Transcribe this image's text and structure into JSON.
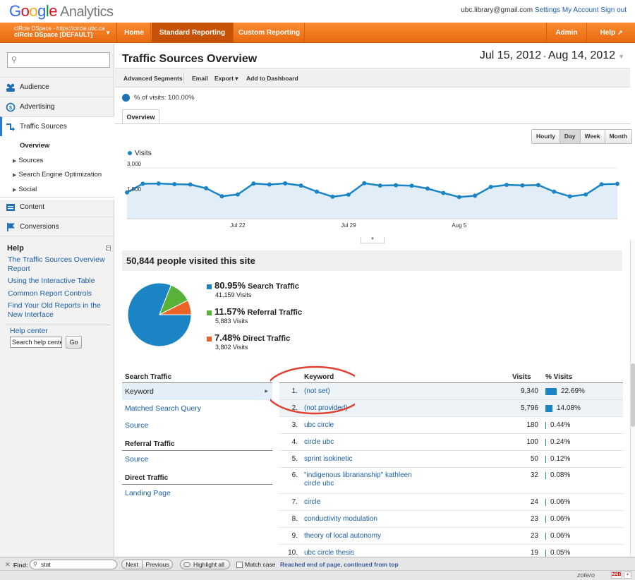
{
  "header": {
    "logo_google": [
      "G",
      "o",
      "o",
      "g",
      "l",
      "e"
    ],
    "logo_analytics": "Analytics",
    "email": "ubc.library@gmail.com",
    "settings": "Settings",
    "my_account": "My Account",
    "sign_out": "Sign out"
  },
  "account": {
    "line1": "cIRcle DSpace - https://circle.ubc.ca",
    "line2": "cIRcle DSpace [DEFAULT]"
  },
  "nav": {
    "home": "Home",
    "standard": "Standard Reporting",
    "custom": "Custom Reporting",
    "admin": "Admin",
    "help": "Help"
  },
  "sidebar": {
    "items": [
      {
        "label": "Audience",
        "icon": "audience-icon"
      },
      {
        "label": "Advertising",
        "icon": "advertising-icon"
      },
      {
        "label": "Traffic Sources",
        "icon": "traffic-sources-icon"
      },
      {
        "label": "Content",
        "icon": "content-icon"
      },
      {
        "label": "Conversions",
        "icon": "conversions-icon"
      }
    ],
    "subitems": [
      "Overview",
      "Sources",
      "Search Engine Optimization",
      "Social"
    ],
    "help_title": "Help",
    "help_links": [
      "The Traffic Sources Overview Report",
      "Using the Interactive Table",
      "Common Report Controls",
      "Find Your Old Reports in the New Interface"
    ],
    "help_center": "Help center",
    "help_search_value": "Search help center",
    "help_go": "Go"
  },
  "report": {
    "title": "Traffic Sources Overview",
    "date_start": "Jul 15, 2012",
    "date_sep": " - ",
    "date_end": "Aug 14, 2012",
    "toolbar": [
      "Advanced Segments",
      "Email",
      "Export ▾",
      "Add to Dashboard"
    ],
    "pct_visits": "% of visits: 100.00%",
    "tab": "Overview",
    "granularity": [
      "Hourly",
      "Day",
      "Week",
      "Month"
    ],
    "granularity_selected": "Day",
    "legend": "Visits"
  },
  "chart_data": {
    "type": "area",
    "series": [
      {
        "name": "Visits",
        "values": [
          1550,
          2070,
          2080,
          2040,
          2020,
          1800,
          1330,
          1430,
          2080,
          2020,
          2090,
          1960,
          1600,
          1300,
          1420,
          2100,
          1960,
          1980,
          1950,
          1780,
          1520,
          1280,
          1360,
          1880,
          2000,
          1970,
          1990,
          1600,
          1320,
          1430,
          2030,
          2060
        ]
      }
    ],
    "ylim": [
      0,
      3000
    ],
    "yticks": [
      "3,000",
      "1,500"
    ],
    "xticks": [
      {
        "label": "Jul 22",
        "index": 7
      },
      {
        "label": "Jul 29",
        "index": 14
      },
      {
        "label": "Aug 5",
        "index": 21
      }
    ],
    "color": "#1b84c4",
    "fill": "#e1eef8"
  },
  "summary": {
    "visitors": "50,844 people visited this site"
  },
  "pie": {
    "slices": [
      {
        "pct": "80.95%",
        "label": "Search Traffic",
        "visits": "41,159 Visits",
        "value": 80.95,
        "color": "#1b84c4"
      },
      {
        "pct": "11.57%",
        "label": "Referral Traffic",
        "visits": "5,883 Visits",
        "value": 11.57,
        "color": "#58b23a"
      },
      {
        "pct": "7.48%",
        "label": "Direct Traffic",
        "visits": "3,802 Visits",
        "value": 7.48,
        "color": "#ed6226"
      }
    ]
  },
  "dimensions": {
    "search_head": "Search Traffic",
    "search_items": [
      "Keyword",
      "Matched Search Query",
      "Source"
    ],
    "referral_head": "Referral Traffic",
    "referral_items": [
      "Source"
    ],
    "direct_head": "Direct Traffic",
    "direct_items": [
      "Landing Page"
    ]
  },
  "keywords": {
    "headers": {
      "keyword": "Keyword",
      "visits": "Visits",
      "pct": "% Visits"
    },
    "rows": [
      {
        "n": "1.",
        "kw": "(not set)",
        "visits": "9,340",
        "pct": "22.69%",
        "frac": 22.69
      },
      {
        "n": "2.",
        "kw": "(not provided)",
        "visits": "5,796",
        "pct": "14.08%",
        "frac": 14.08
      },
      {
        "n": "3.",
        "kw": "ubc circle",
        "visits": "180",
        "pct": "0.44%",
        "frac": 0.44
      },
      {
        "n": "4.",
        "kw": "circle ubc",
        "visits": "100",
        "pct": "0.24%",
        "frac": 0.24
      },
      {
        "n": "5.",
        "kw": "sprint isokinetic",
        "visits": "50",
        "pct": "0.12%",
        "frac": 0.12
      },
      {
        "n": "6.",
        "kw": "\"indigenous librarianship\" kathleen circle ubc",
        "visits": "32",
        "pct": "0.08%",
        "frac": 0.08
      },
      {
        "n": "7.",
        "kw": "circle",
        "visits": "24",
        "pct": "0.06%",
        "frac": 0.06
      },
      {
        "n": "8.",
        "kw": "conductivity modulation",
        "visits": "23",
        "pct": "0.06%",
        "frac": 0.06
      },
      {
        "n": "9.",
        "kw": "theory of local autonomy",
        "visits": "23",
        "pct": "0.06%",
        "frac": 0.06
      },
      {
        "n": "10.",
        "kw": "ubc circle thesis",
        "visits": "19",
        "pct": "0.05%",
        "frac": 0.05
      }
    ]
  },
  "findbar": {
    "close": "✕",
    "label": "Find:",
    "value": "stat",
    "next": "Next",
    "previous": "Previous",
    "highlight": "Highlight all",
    "match_case": "Match case",
    "status": "Reached end of page, continued from top"
  },
  "statusbar": {
    "zotero": "zotero",
    "badge": "Z2B"
  }
}
